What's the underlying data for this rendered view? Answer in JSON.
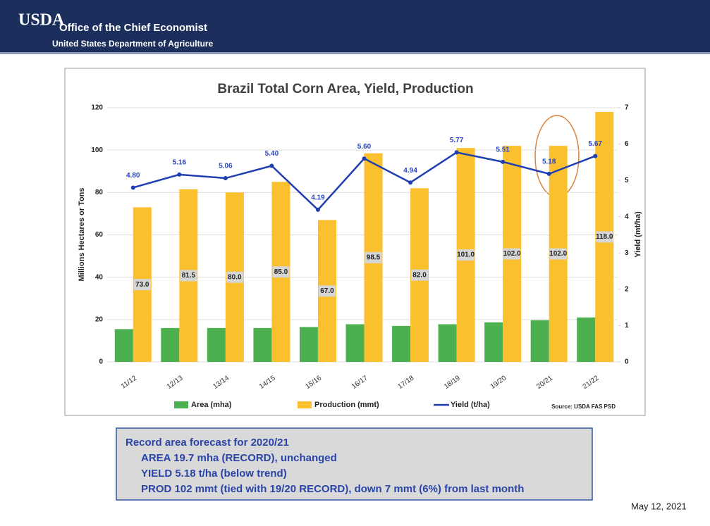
{
  "header": {
    "logo": "USDA",
    "title": "Office of the Chief Economist",
    "subtitle": "United States Department of Agriculture"
  },
  "chart_data": {
    "type": "bar",
    "title": "Brazil Total Corn Area, Yield, Production",
    "y_label": "Millions Hectares or Tons",
    "y2_label": "Yield (mt/ha)",
    "categories": [
      "11/12",
      "12/13",
      "13/14",
      "14/15",
      "15/16",
      "16/17",
      "17/18",
      "18/19",
      "19/20",
      "20/21",
      "21/22"
    ],
    "series": [
      {
        "name": "Area (mha)",
        "color": "#4caf50",
        "values": [
          15.5,
          16,
          16,
          16,
          16.5,
          17.8,
          17,
          17.8,
          18.7,
          19.7,
          21
        ]
      },
      {
        "name": "Production (mmt)",
        "color": "#fbc02d",
        "values": [
          73,
          81.5,
          80,
          85,
          67,
          98.5,
          82,
          101,
          102,
          102,
          118
        ],
        "value_labels": [
          "73.0",
          "81.5",
          "80.0",
          "85.0",
          "67.0",
          "98.5",
          "82.0",
          "101.0",
          "102.0",
          "102.0",
          "118.0"
        ]
      },
      {
        "name": "Yield (t/ha)",
        "type": "line",
        "axis": "y2",
        "color": "#1f3fb0",
        "values": [
          4.8,
          5.16,
          5.06,
          5.4,
          4.19,
          5.6,
          4.94,
          5.77,
          5.51,
          5.18,
          5.67
        ],
        "value_labels": [
          "4.80",
          "5.16",
          "5.06",
          "5.40",
          "4.19",
          "5.60",
          "4.94",
          "5.77",
          "5.51",
          "5.18",
          "5.67"
        ]
      }
    ],
    "ylim": [
      0,
      120
    ],
    "yticks": [
      0,
      20,
      40,
      60,
      80,
      100,
      120
    ],
    "y2lim": [
      0,
      7
    ],
    "y2ticks": [
      0,
      1,
      2,
      3,
      4,
      5,
      6,
      7
    ],
    "grid": true,
    "source": "Source: USDA FAS PSD"
  },
  "note": {
    "lines": [
      "Record area forecast for 2020/21",
      "AREA  19.7 mha (RECORD), unchanged",
      "YIELD  5.18 t/ha (below trend)",
      "PROD 102 mmt (tied with 19/20 RECORD), down 7 mmt (6%) from last month"
    ]
  },
  "date": "May 12, 2021"
}
